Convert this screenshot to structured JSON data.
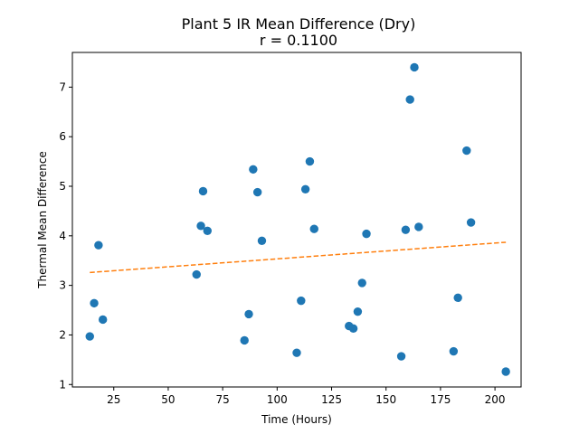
{
  "chart_data": {
    "type": "scatter",
    "title": "Plant 5 IR Mean Difference (Dry)",
    "subtitle": "r = 0.1100",
    "xlabel": "Time (Hours)",
    "ylabel": "Thermal Mean Difference",
    "xlim": [
      6,
      212
    ],
    "ylim": [
      0.95,
      7.7
    ],
    "x_ticks": [
      25,
      50,
      75,
      100,
      125,
      150,
      175,
      200
    ],
    "y_ticks": [
      1,
      2,
      3,
      4,
      5,
      6,
      7
    ],
    "grid": false,
    "colors": {
      "points": "#1f77b4",
      "trend": "#ff7f0e"
    },
    "series": [
      {
        "values": [
          {
            "x": 14,
            "y": 1.97
          },
          {
            "x": 16,
            "y": 2.64
          },
          {
            "x": 18,
            "y": 3.81
          },
          {
            "x": 20,
            "y": 2.31
          },
          {
            "x": 63,
            "y": 3.22
          },
          {
            "x": 65,
            "y": 4.2
          },
          {
            "x": 66,
            "y": 4.9
          },
          {
            "x": 68,
            "y": 4.1
          },
          {
            "x": 85,
            "y": 1.89
          },
          {
            "x": 87,
            "y": 2.42
          },
          {
            "x": 89,
            "y": 5.34
          },
          {
            "x": 91,
            "y": 4.88
          },
          {
            "x": 93,
            "y": 3.9
          },
          {
            "x": 109,
            "y": 1.64
          },
          {
            "x": 111,
            "y": 2.69
          },
          {
            "x": 113,
            "y": 4.94
          },
          {
            "x": 115,
            "y": 5.5
          },
          {
            "x": 117,
            "y": 4.14
          },
          {
            "x": 133,
            "y": 2.18
          },
          {
            "x": 135,
            "y": 2.13
          },
          {
            "x": 137,
            "y": 2.47
          },
          {
            "x": 139,
            "y": 3.05
          },
          {
            "x": 141,
            "y": 4.04
          },
          {
            "x": 157,
            "y": 1.57
          },
          {
            "x": 159,
            "y": 4.12
          },
          {
            "x": 161,
            "y": 6.75
          },
          {
            "x": 163,
            "y": 7.4
          },
          {
            "x": 165,
            "y": 4.18
          },
          {
            "x": 181,
            "y": 1.67
          },
          {
            "x": 183,
            "y": 2.75
          },
          {
            "x": 187,
            "y": 5.72
          },
          {
            "x": 189,
            "y": 4.27
          },
          {
            "x": 205,
            "y": 1.26
          }
        ]
      }
    ],
    "trendline": {
      "x": [
        14,
        205
      ],
      "y": [
        3.26,
        3.87
      ],
      "style": "dashed"
    }
  }
}
